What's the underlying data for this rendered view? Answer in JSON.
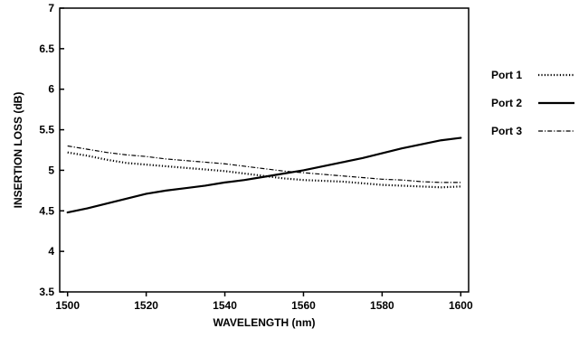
{
  "chart_data": {
    "type": "line",
    "xlabel": "WAVELENGTH (nm)",
    "ylabel": "INSERTION LOSS (dB)",
    "xlim": [
      1498,
      1602
    ],
    "ylim": [
      3.5,
      7
    ],
    "x_ticks": [
      1500,
      1520,
      1540,
      1560,
      1580,
      1600
    ],
    "y_ticks": [
      3.5,
      4,
      4.5,
      5,
      5.5,
      6,
      6.5,
      7
    ],
    "x_tick_labels": [
      "1500",
      "1520",
      "1540",
      "1560",
      "1580",
      "1600"
    ],
    "y_tick_labels": [
      "3.5",
      "4",
      "4.5",
      "5",
      "5.5",
      "6",
      "6.5",
      "7"
    ],
    "grid": false,
    "legend_position": "right",
    "series": [
      {
        "name": "Port 1",
        "style": "dotted",
        "x": [
          1500,
          1505,
          1510,
          1515,
          1520,
          1525,
          1530,
          1535,
          1540,
          1545,
          1550,
          1555,
          1560,
          1565,
          1570,
          1575,
          1580,
          1585,
          1590,
          1595,
          1600
        ],
        "y": [
          5.22,
          5.18,
          5.13,
          5.09,
          5.07,
          5.05,
          5.03,
          5.01,
          4.99,
          4.96,
          4.93,
          4.9,
          4.88,
          4.87,
          4.86,
          4.84,
          4.82,
          4.81,
          4.8,
          4.79,
          4.8
        ]
      },
      {
        "name": "Port 2",
        "style": "solid",
        "x": [
          1500,
          1505,
          1510,
          1515,
          1520,
          1525,
          1530,
          1535,
          1540,
          1545,
          1550,
          1555,
          1560,
          1565,
          1570,
          1575,
          1580,
          1585,
          1590,
          1595,
          1600
        ],
        "y": [
          4.48,
          4.53,
          4.59,
          4.65,
          4.71,
          4.75,
          4.78,
          4.81,
          4.85,
          4.88,
          4.92,
          4.96,
          5.0,
          5.05,
          5.1,
          5.15,
          5.21,
          5.27,
          5.32,
          5.37,
          5.4
        ]
      },
      {
        "name": "Port 3",
        "style": "dash-dot",
        "x": [
          1500,
          1505,
          1510,
          1515,
          1520,
          1525,
          1530,
          1535,
          1540,
          1545,
          1550,
          1555,
          1560,
          1565,
          1570,
          1575,
          1580,
          1585,
          1590,
          1595,
          1600
        ],
        "y": [
          5.3,
          5.26,
          5.22,
          5.19,
          5.17,
          5.14,
          5.12,
          5.1,
          5.08,
          5.05,
          5.02,
          4.99,
          4.97,
          4.95,
          4.93,
          4.91,
          4.89,
          4.88,
          4.86,
          4.85,
          4.85
        ]
      }
    ]
  },
  "colors": {
    "line": "#000000",
    "background": "#ffffff"
  }
}
